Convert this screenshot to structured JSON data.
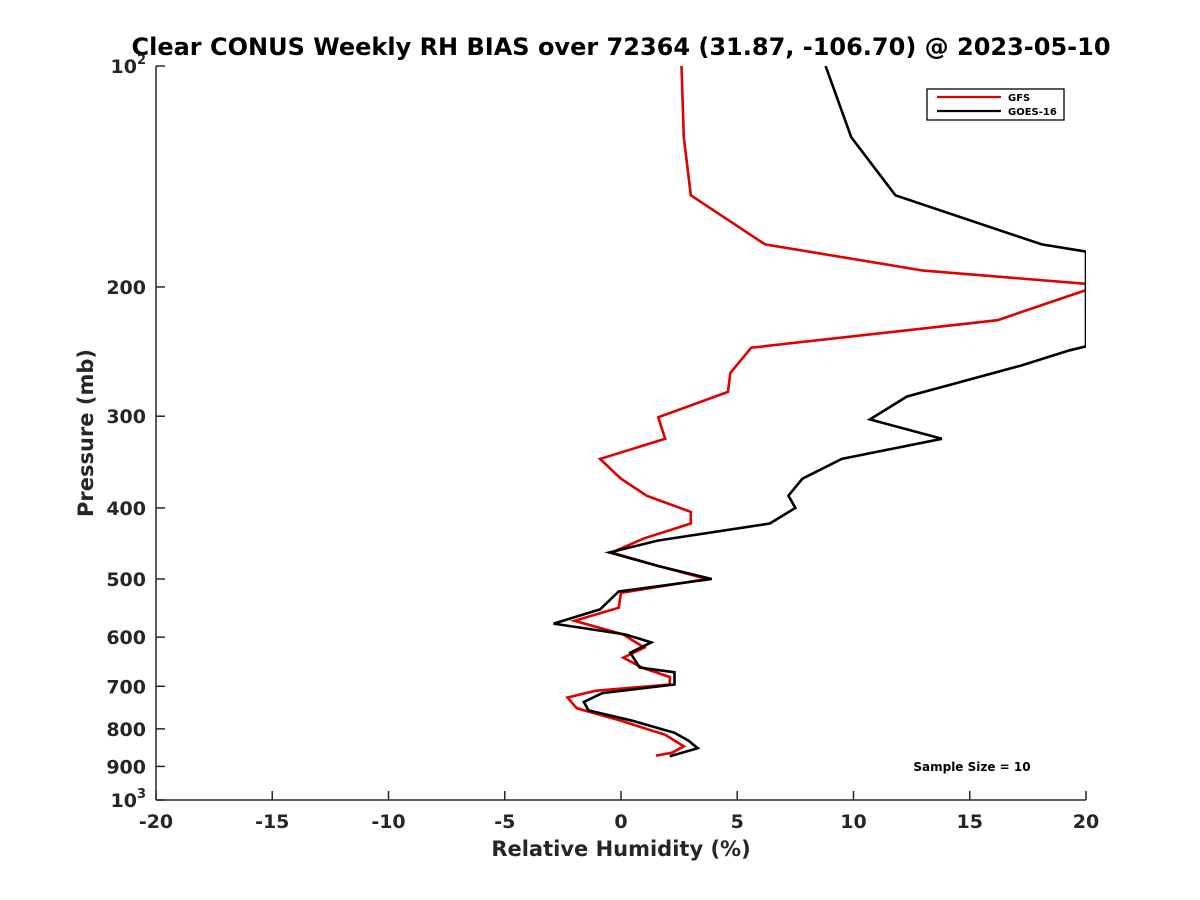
{
  "chart_data": {
    "type": "line",
    "title": "Clear CONUS Weekly RH BIAS over 72364 (31.87, -106.70) @ 2023-05-10",
    "xlabel": "Relative Humidity (%)",
    "ylabel": "Pressure (mb)",
    "xlim": [
      -20,
      20
    ],
    "ylim": [
      100,
      1000
    ],
    "y_scale": "log",
    "y_reversed": true,
    "grid": false,
    "x_ticks": [
      -20,
      -15,
      -10,
      -5,
      0,
      5,
      10,
      15,
      20
    ],
    "x_tick_labels": [
      "-20",
      "-15",
      "-10",
      "-5",
      "0",
      "5",
      "10",
      "15",
      "20"
    ],
    "y_ticks": [
      100,
      200,
      300,
      400,
      500,
      600,
      700,
      800,
      900,
      1000
    ],
    "y_tick_labels": [
      {
        "base": "10",
        "exp": "2"
      },
      {
        "base": "200",
        "exp": ""
      },
      {
        "base": "300",
        "exp": ""
      },
      {
        "base": "400",
        "exp": ""
      },
      {
        "base": "500",
        "exp": ""
      },
      {
        "base": "600",
        "exp": ""
      },
      {
        "base": "700",
        "exp": ""
      },
      {
        "base": "800",
        "exp": ""
      },
      {
        "base": "900",
        "exp": ""
      },
      {
        "base": "10",
        "exp": "3"
      }
    ],
    "legend_position": "top-right",
    "annotation": "Sample Size = 10",
    "series": [
      {
        "name": "GFS",
        "color": "#e00000",
        "points": [
          [
            2.6,
            100
          ],
          [
            2.7,
            125
          ],
          [
            3.0,
            150
          ],
          [
            6.2,
            175
          ],
          [
            13.0,
            190
          ],
          [
            20.0,
            198
          ],
          [
            20.0,
            202
          ],
          [
            16.2,
            222
          ],
          [
            5.6,
            242
          ],
          [
            4.7,
            262
          ],
          [
            4.6,
            278
          ],
          [
            1.6,
            301
          ],
          [
            1.9,
            322
          ],
          [
            -0.9,
            343
          ],
          [
            0.0,
            365
          ],
          [
            1.1,
            385
          ],
          [
            3.0,
            405
          ],
          [
            3.0,
            420
          ],
          [
            1.0,
            440
          ],
          [
            -0.4,
            460
          ],
          [
            1.6,
            480
          ],
          [
            3.7,
            500
          ],
          [
            0.0,
            522
          ],
          [
            -0.1,
            547
          ],
          [
            -2.0,
            570
          ],
          [
            0.1,
            595
          ],
          [
            1.0,
            620
          ],
          [
            0.1,
            640
          ],
          [
            0.9,
            660
          ],
          [
            2.1,
            680
          ],
          [
            2.1,
            696
          ],
          [
            -1.1,
            710
          ],
          [
            -2.3,
            725
          ],
          [
            -1.9,
            750
          ],
          [
            0.0,
            780
          ],
          [
            1.9,
            815
          ],
          [
            2.7,
            845
          ],
          [
            2.2,
            862
          ],
          [
            1.5,
            870
          ]
        ]
      },
      {
        "name": "GOES-16",
        "color": "#000000",
        "points": [
          [
            8.8,
            100
          ],
          [
            9.9,
            125
          ],
          [
            11.8,
            150
          ],
          [
            18.1,
            175
          ],
          [
            20.0,
            179
          ],
          [
            20.0,
            241
          ],
          [
            19.3,
            244
          ],
          [
            17.2,
            256
          ],
          [
            12.3,
            282
          ],
          [
            10.7,
            303
          ],
          [
            13.8,
            322
          ],
          [
            9.5,
            343
          ],
          [
            7.8,
            365
          ],
          [
            7.2,
            385
          ],
          [
            7.5,
            400
          ],
          [
            6.4,
            420
          ],
          [
            1.6,
            443
          ],
          [
            -0.5,
            460
          ],
          [
            1.6,
            480
          ],
          [
            3.9,
            500
          ],
          [
            -0.1,
            520
          ],
          [
            -0.9,
            550
          ],
          [
            -2.9,
            575
          ],
          [
            0.2,
            595
          ],
          [
            1.3,
            610
          ],
          [
            0.4,
            630
          ],
          [
            0.8,
            660
          ],
          [
            2.3,
            670
          ],
          [
            2.3,
            696
          ],
          [
            -0.8,
            715
          ],
          [
            -1.6,
            735
          ],
          [
            -1.4,
            755
          ],
          [
            0.5,
            780
          ],
          [
            2.3,
            810
          ],
          [
            2.9,
            830
          ],
          [
            3.3,
            850
          ],
          [
            2.1,
            872
          ]
        ]
      }
    ]
  }
}
